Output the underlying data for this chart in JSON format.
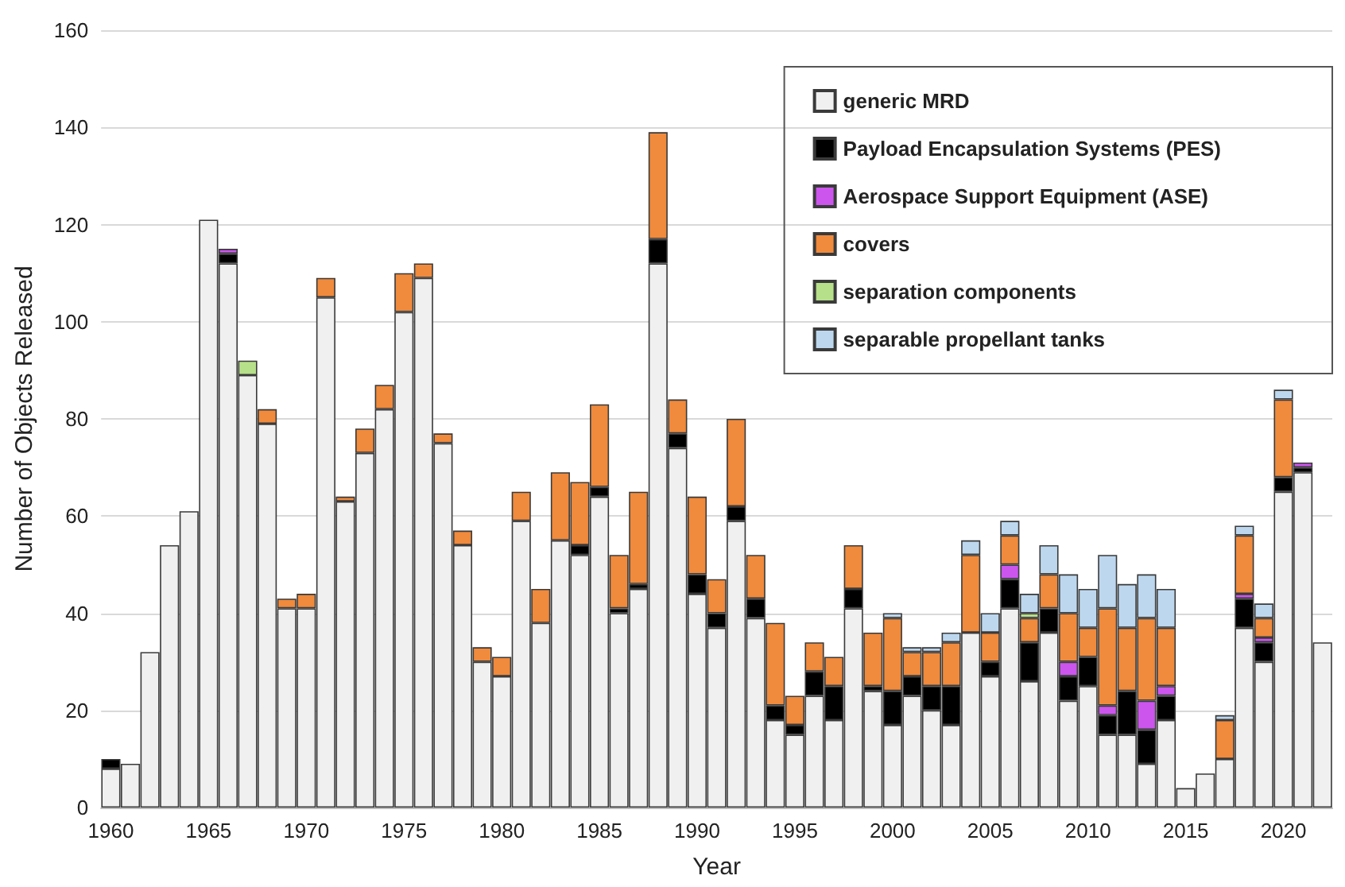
{
  "chart_data": {
    "type": "bar",
    "stacked": true,
    "xlabel": "Year",
    "ylabel": "Number of Objects Released",
    "categories": [
      "1960",
      null,
      null,
      null,
      null,
      "1965",
      null,
      null,
      null,
      null,
      "1970",
      null,
      null,
      null,
      null,
      "1975",
      null,
      null,
      null,
      null,
      "1980",
      null,
      null,
      null,
      null,
      "1985",
      null,
      null,
      null,
      null,
      "1990",
      null,
      null,
      null,
      null,
      "1995",
      null,
      null,
      null,
      null,
      "2000",
      null,
      null,
      null,
      null,
      "2005",
      null,
      null,
      null,
      null,
      "2010",
      null,
      null,
      null,
      null,
      "2015",
      null,
      null,
      null,
      null,
      "2020",
      null,
      null
    ],
    "series": [
      {
        "name": "generic MRD",
        "color": "#f0f0f0",
        "values": [
          8,
          9,
          32,
          54,
          61,
          121,
          112,
          89,
          79,
          41,
          41,
          105,
          63,
          73,
          82,
          102,
          109,
          75,
          54,
          30,
          27,
          59,
          38,
          55,
          52,
          64,
          40,
          45,
          112,
          74,
          44,
          37,
          59,
          39,
          18,
          15,
          23,
          18,
          41,
          24,
          17,
          23,
          20,
          17,
          36,
          27,
          41,
          26,
          36,
          22,
          25,
          15,
          15,
          9,
          18,
          4,
          7,
          10,
          37,
          30,
          65,
          69,
          34
        ]
      },
      {
        "name": "Payload Encapsulation Systems (PES)",
        "color": "#000000",
        "values": [
          2,
          null,
          null,
          null,
          null,
          null,
          2,
          null,
          null,
          null,
          null,
          null,
          null,
          null,
          null,
          null,
          null,
          null,
          null,
          null,
          null,
          null,
          null,
          null,
          2,
          2,
          1,
          1,
          5,
          3,
          4,
          3,
          3,
          4,
          3,
          2,
          5,
          7,
          4,
          1,
          7,
          4,
          5,
          8,
          null,
          3,
          6,
          8,
          5,
          5,
          6,
          4,
          9,
          7,
          5,
          null,
          null,
          null,
          6,
          4,
          3,
          1,
          null
        ]
      },
      {
        "name": "Aerospace Support Equipment (ASE)",
        "color": "#cc55ee",
        "values": [
          null,
          null,
          null,
          null,
          null,
          null,
          1,
          null,
          null,
          null,
          null,
          null,
          null,
          null,
          null,
          null,
          null,
          null,
          null,
          null,
          null,
          null,
          null,
          null,
          null,
          null,
          null,
          null,
          null,
          null,
          null,
          null,
          null,
          null,
          null,
          null,
          null,
          null,
          null,
          null,
          null,
          null,
          null,
          null,
          null,
          null,
          3,
          null,
          null,
          3,
          null,
          2,
          null,
          6,
          2,
          null,
          null,
          null,
          1,
          1,
          null,
          1,
          null
        ]
      },
      {
        "name": "covers",
        "color": "#f08a3c",
        "values": [
          null,
          null,
          null,
          null,
          null,
          null,
          null,
          null,
          3,
          2,
          3,
          4,
          1,
          5,
          5,
          8,
          3,
          2,
          3,
          3,
          4,
          6,
          7,
          14,
          13,
          17,
          11,
          19,
          22,
          7,
          16,
          7,
          18,
          9,
          17,
          6,
          6,
          6,
          9,
          11,
          15,
          5,
          7,
          9,
          16,
          6,
          6,
          5,
          7,
          10,
          6,
          20,
          13,
          17,
          12,
          null,
          null,
          8,
          12,
          4,
          16,
          null,
          null
        ]
      },
      {
        "name": "separation components",
        "color": "#b7e08a",
        "values": [
          null,
          null,
          null,
          null,
          null,
          null,
          null,
          3,
          null,
          null,
          null,
          null,
          null,
          null,
          null,
          null,
          null,
          null,
          null,
          null,
          null,
          null,
          null,
          null,
          null,
          null,
          null,
          null,
          null,
          null,
          null,
          null,
          null,
          null,
          null,
          null,
          null,
          null,
          null,
          null,
          null,
          null,
          null,
          null,
          null,
          null,
          null,
          1,
          null,
          null,
          null,
          null,
          null,
          null,
          null,
          null,
          null,
          null,
          null,
          null,
          null,
          null,
          null
        ]
      },
      {
        "name": "separable propellant tanks",
        "color": "#bdd7ee",
        "values": [
          null,
          null,
          null,
          null,
          null,
          null,
          null,
          null,
          null,
          null,
          null,
          null,
          null,
          null,
          null,
          null,
          null,
          null,
          null,
          null,
          null,
          null,
          null,
          null,
          null,
          null,
          null,
          null,
          null,
          null,
          null,
          null,
          null,
          null,
          null,
          null,
          null,
          null,
          null,
          null,
          1,
          1,
          1,
          2,
          3,
          4,
          3,
          4,
          6,
          8,
          8,
          11,
          9,
          9,
          8,
          null,
          null,
          1,
          2,
          3,
          2,
          null,
          null
        ]
      }
    ],
    "ylim": [
      0,
      160
    ],
    "yticks": [
      0,
      20,
      40,
      60,
      80,
      100,
      120,
      140,
      160
    ],
    "grid": "y",
    "legend": "top right"
  }
}
